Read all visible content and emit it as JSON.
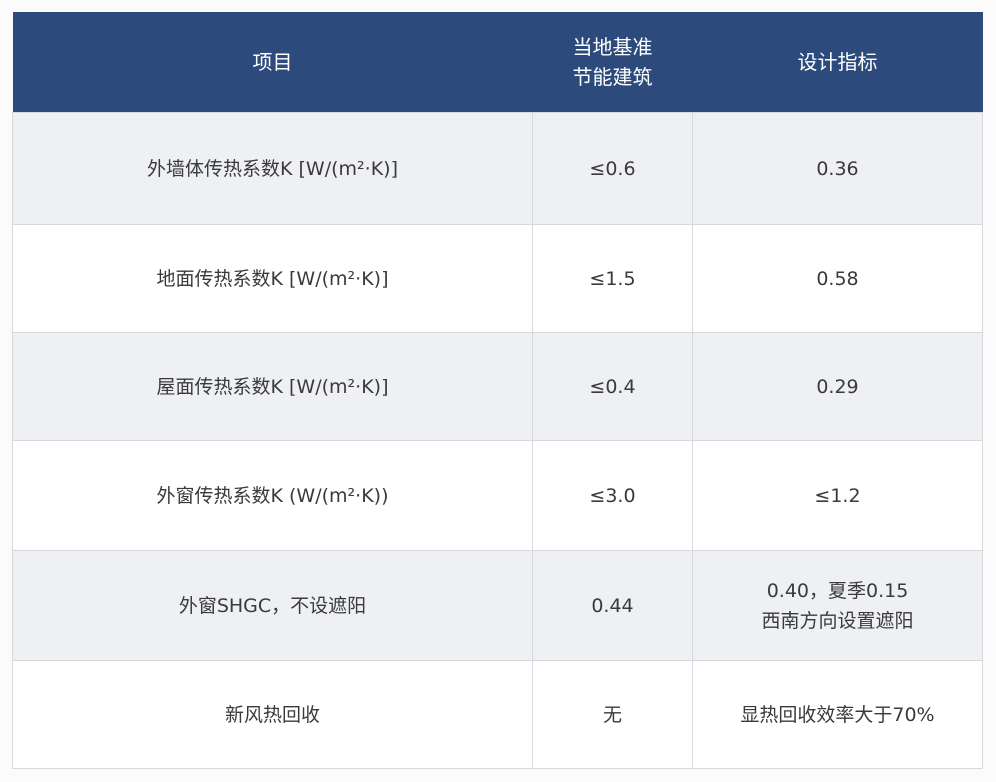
{
  "table": {
    "header": [
      "项目",
      [
        "当地基准",
        "节能建筑"
      ],
      "设计指标"
    ],
    "rows": [
      [
        "外墙体传热系数K [W/(m²·K)]",
        "≤0.6",
        "0.36"
      ],
      [
        "地面传热系数K [W/(m²·K)]",
        "≤1.5",
        "0.58"
      ],
      [
        "屋面传热系数K [W/(m²·K)]",
        "≤0.4",
        "0.29"
      ],
      [
        "外窗传热系数K (W/(m²·K))",
        "≤3.0",
        "≤1.2"
      ],
      [
        "外窗SHGC，不设遮阳",
        "0.44",
        [
          "0.40，夏季0.15",
          "西南方向设置遮阳"
        ]
      ],
      [
        "新风热回收",
        "无",
        "显热回收效率大于70%"
      ]
    ]
  }
}
